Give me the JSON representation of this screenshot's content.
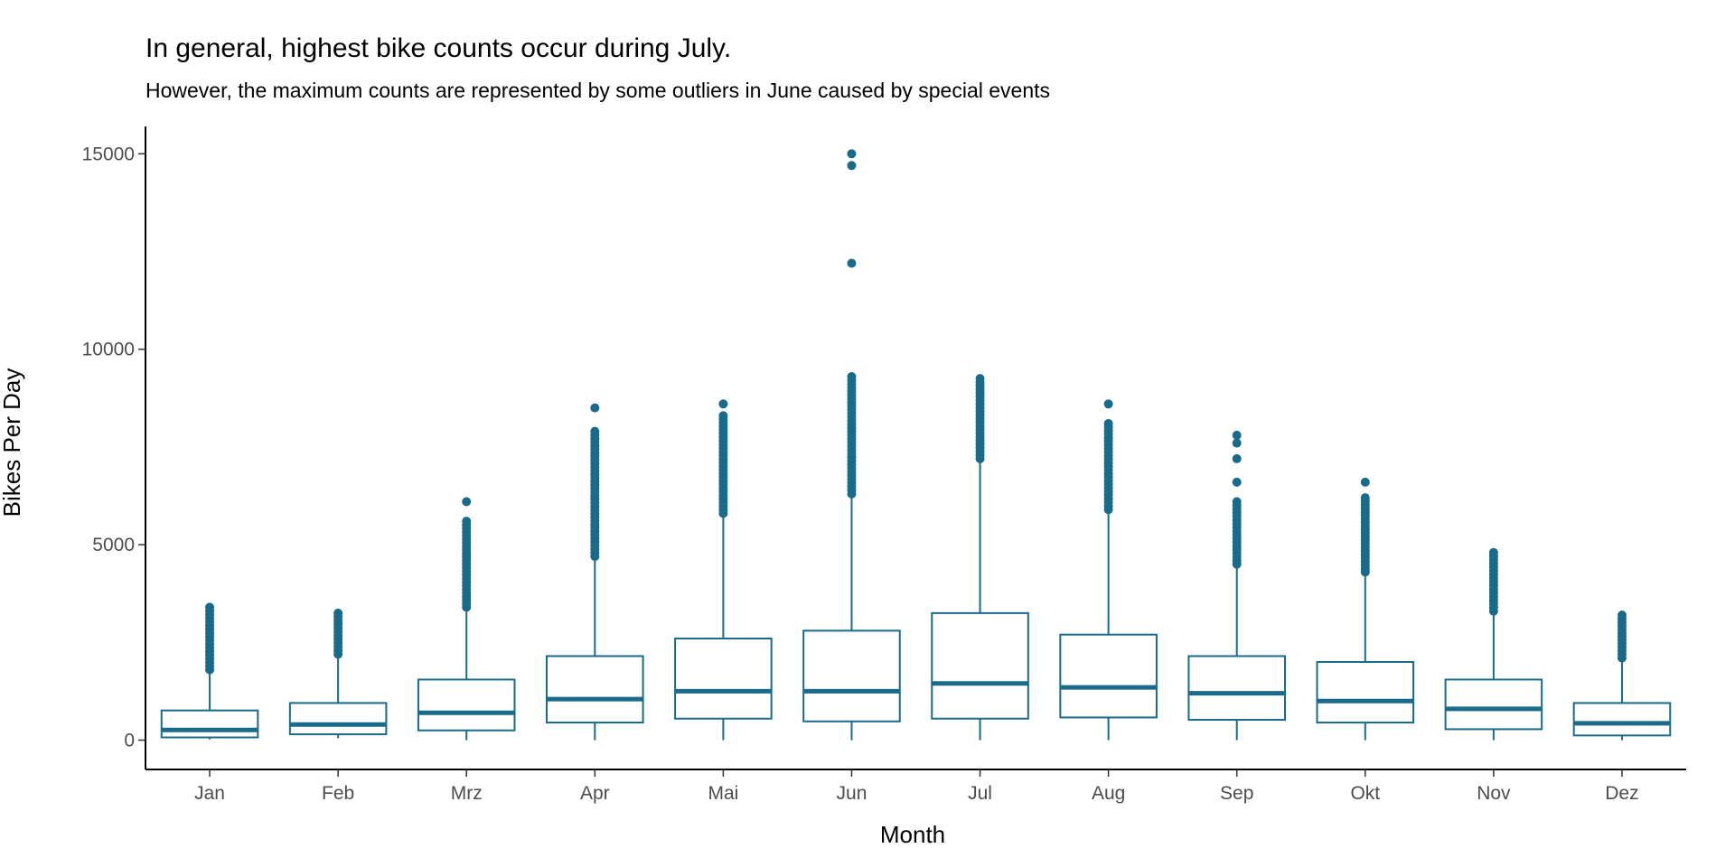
{
  "chart_data": {
    "type": "box",
    "title": "In general, highest bike counts occur during July.",
    "subtitle": "However, the maximum counts are represented by some outliers in June caused by special events",
    "xlabel": "Month",
    "ylabel": "Bikes Per Day",
    "ylim": [
      -750,
      15700
    ],
    "yticks": [
      0,
      5000,
      10000,
      15000
    ],
    "grid": false,
    "legend": "none",
    "color": "#1a6a8a",
    "categories": [
      "Jan",
      "Feb",
      "Mrz",
      "Apr",
      "Mai",
      "Jun",
      "Jul",
      "Aug",
      "Sep",
      "Okt",
      "Nov",
      "Dez"
    ],
    "boxes": [
      {
        "min": 20,
        "q1": 70,
        "median": 260,
        "q3": 760,
        "max": 1800,
        "outlier_range": [
          1800,
          3400
        ]
      },
      {
        "min": 50,
        "q1": 150,
        "median": 400,
        "q3": 950,
        "max": 2200,
        "outlier_range": [
          2200,
          3250
        ]
      },
      {
        "min": 0,
        "q1": 250,
        "median": 700,
        "q3": 1550,
        "max": 3400,
        "outlier_range": [
          3400,
          5600
        ],
        "outliers": [
          6100
        ]
      },
      {
        "min": 0,
        "q1": 450,
        "median": 1050,
        "q3": 2150,
        "max": 4700,
        "outlier_range": [
          4700,
          7900
        ],
        "outliers": [
          8500
        ]
      },
      {
        "min": 0,
        "q1": 550,
        "median": 1250,
        "q3": 2600,
        "max": 5800,
        "outlier_range": [
          5800,
          8300
        ],
        "outliers": [
          8600
        ]
      },
      {
        "min": 0,
        "q1": 480,
        "median": 1250,
        "q3": 2800,
        "max": 6300,
        "outlier_range": [
          6300,
          9300
        ],
        "outliers": [
          12200,
          14700,
          15000
        ]
      },
      {
        "min": 0,
        "q1": 550,
        "median": 1450,
        "q3": 3250,
        "max": 7200,
        "outlier_range": [
          7200,
          9250
        ]
      },
      {
        "min": 0,
        "q1": 580,
        "median": 1350,
        "q3": 2700,
        "max": 5900,
        "outlier_range": [
          5900,
          8100
        ],
        "outliers": [
          8600
        ]
      },
      {
        "min": 0,
        "q1": 520,
        "median": 1200,
        "q3": 2150,
        "max": 4500,
        "outlier_range": [
          4500,
          6100
        ],
        "outliers": [
          6600,
          7200,
          7600,
          7800
        ]
      },
      {
        "min": 0,
        "q1": 450,
        "median": 1000,
        "q3": 2000,
        "max": 4300,
        "outlier_range": [
          4300,
          6200
        ],
        "outliers": [
          6600
        ]
      },
      {
        "min": 0,
        "q1": 280,
        "median": 800,
        "q3": 1550,
        "max": 3300,
        "outlier_range": [
          3300,
          4800
        ]
      },
      {
        "min": 0,
        "q1": 120,
        "median": 430,
        "q3": 950,
        "max": 2100,
        "outlier_range": [
          2100,
          3200
        ]
      }
    ]
  }
}
